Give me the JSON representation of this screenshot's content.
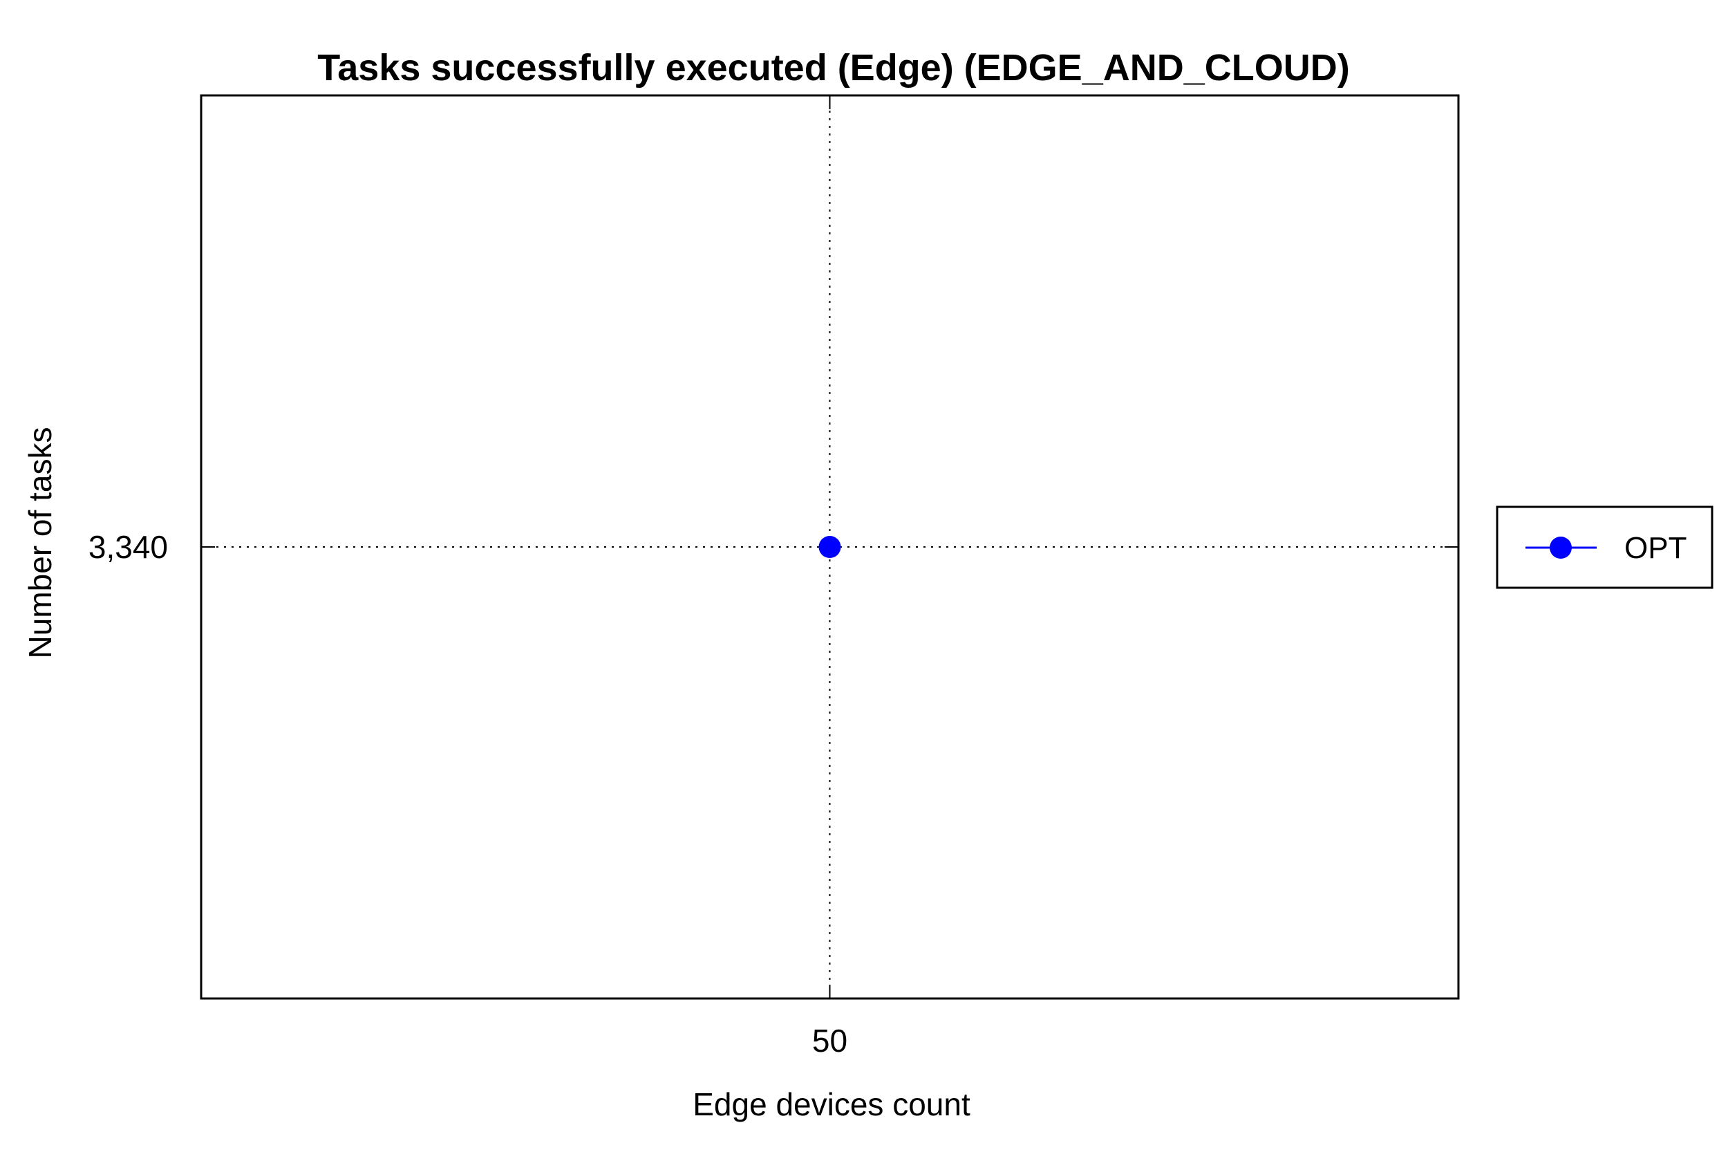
{
  "chart_data": {
    "type": "line",
    "title": "Tasks successfully executed (Edge) (EDGE_AND_CLOUD)",
    "xlabel": "Edge devices count",
    "ylabel": "Number of tasks",
    "x": [
      50
    ],
    "x_tick_labels": [
      "50"
    ],
    "y_tick_labels": [
      "3,340"
    ],
    "y_ticks": [
      3340
    ],
    "xlim": [
      49,
      51
    ],
    "ylim": [
      3339,
      3341
    ],
    "grid": true,
    "legend_position": "right",
    "series": [
      {
        "name": "OPT",
        "x": [
          50
        ],
        "values": [
          3340
        ],
        "color": "#0000ff",
        "marker": "circle"
      }
    ]
  }
}
